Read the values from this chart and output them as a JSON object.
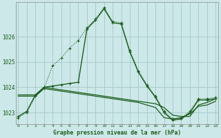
{
  "title": "Graphe pression niveau de la mer (hPa)",
  "bg_color": "#cce8e8",
  "grid_color": "#aacccc",
  "line_color": "#1a5c1a",
  "x_values": [
    0,
    1,
    2,
    3,
    4,
    5,
    6,
    7,
    8,
    9,
    10,
    11,
    12,
    13,
    14,
    15,
    16,
    17,
    18,
    19,
    20,
    21,
    22,
    23
  ],
  "line_dotted": [
    1022.8,
    1023.0,
    1023.65,
    1023.95,
    1024.85,
    1025.15,
    1025.55,
    1025.85,
    1026.35,
    1026.7,
    1027.15,
    1026.6,
    1026.55,
    1025.45,
    1024.65,
    1024.1,
    1023.65,
    1023.05,
    1022.75,
    1022.8,
    1023.05,
    1023.55,
    1023.55,
    1023.6
  ],
  "line_solid_peak": [
    1022.85,
    1023.05,
    1023.7,
    1024.0,
    1024.05,
    1024.1,
    1024.15,
    1024.2,
    1026.3,
    1026.65,
    1027.1,
    1026.55,
    1026.5,
    1025.4,
    1024.6,
    1024.05,
    1023.6,
    1023.0,
    1022.7,
    1022.75,
    1023.0,
    1023.5,
    1023.5,
    1023.55
  ],
  "line_flat1": [
    1023.7,
    1023.7,
    1023.7,
    1024.0,
    1023.95,
    1023.9,
    1023.85,
    1023.8,
    1023.75,
    1023.7,
    1023.65,
    1023.6,
    1023.55,
    1023.5,
    1023.45,
    1023.4,
    1023.35,
    1023.2,
    1022.9,
    1022.85,
    1022.85,
    1023.3,
    1023.4,
    1023.55
  ],
  "line_flat2": [
    1023.65,
    1023.65,
    1023.65,
    1023.95,
    1023.9,
    1023.85,
    1023.8,
    1023.75,
    1023.7,
    1023.65,
    1023.6,
    1023.55,
    1023.5,
    1023.45,
    1023.4,
    1023.3,
    1023.2,
    1022.8,
    1022.75,
    1022.8,
    1022.95,
    1023.25,
    1023.3,
    1023.45
  ],
  "ylim": [
    1022.55,
    1027.35
  ],
  "yticks": [
    1023,
    1024,
    1025,
    1026
  ],
  "xticks": [
    0,
    1,
    2,
    3,
    4,
    5,
    6,
    7,
    8,
    9,
    10,
    11,
    12,
    13,
    14,
    15,
    16,
    17,
    18,
    19,
    20,
    21,
    22,
    23
  ]
}
